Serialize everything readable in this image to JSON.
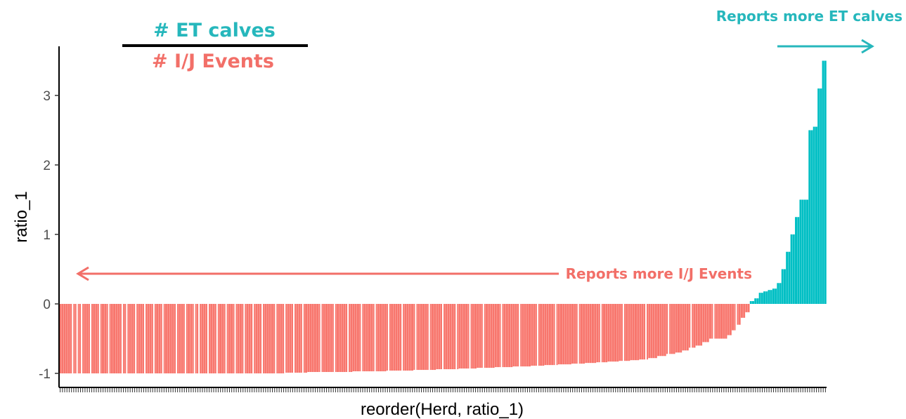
{
  "chart_data": {
    "type": "bar",
    "xlabel": "reorder(Herd, ratio_1)",
    "ylabel": "ratio_1",
    "ylim": [
      -1.15,
      3.6
    ],
    "yticks": [
      -1,
      0,
      1,
      2,
      3
    ],
    "grid": false,
    "legend": "none",
    "colors": {
      "negative": "#f8766d",
      "positive": "#00bfc4",
      "axis": "#000000"
    },
    "annotations": {
      "numerator": "# ET calves",
      "denominator": "# I/J Events",
      "right_label": "Reports more ET calves",
      "left_label": "Reports more I/J Events"
    },
    "series": [
      {
        "segments": [
          {
            "count": 100,
            "value": -1.0
          },
          {
            "count": 10,
            "value": -0.99
          },
          {
            "count": 20,
            "value": -0.98
          },
          {
            "count": 15,
            "value": -0.97
          },
          {
            "count": 12,
            "value": -0.96
          },
          {
            "count": 10,
            "value": -0.95
          },
          {
            "count": 10,
            "value": -0.94
          },
          {
            "count": 8,
            "value": -0.93
          },
          {
            "count": 8,
            "value": -0.92
          },
          {
            "count": 8,
            "value": -0.91
          },
          {
            "count": 8,
            "value": -0.9
          },
          {
            "count": 6,
            "value": -0.89
          },
          {
            "count": 6,
            "value": -0.88
          },
          {
            "count": 6,
            "value": -0.87
          },
          {
            "count": 6,
            "value": -0.86
          },
          {
            "count": 5,
            "value": -0.85
          },
          {
            "count": 5,
            "value": -0.84
          },
          {
            "count": 5,
            "value": -0.83
          },
          {
            "count": 5,
            "value": -0.82
          },
          {
            "count": 4,
            "value": -0.81
          },
          {
            "count": 4,
            "value": -0.8
          },
          {
            "count": 4,
            "value": -0.78
          },
          {
            "count": 4,
            "value": -0.75
          },
          {
            "count": 4,
            "value": -0.72
          },
          {
            "count": 3,
            "value": -0.7
          },
          {
            "count": 3,
            "value": -0.67
          },
          {
            "count": 3,
            "value": -0.63
          },
          {
            "count": 3,
            "value": -0.6
          },
          {
            "count": 3,
            "value": -0.55
          },
          {
            "count": 8,
            "value": -0.5
          },
          {
            "count": 2,
            "value": -0.45
          },
          {
            "count": 2,
            "value": -0.38
          },
          {
            "count": 2,
            "value": -0.3
          },
          {
            "count": 2,
            "value": -0.2
          },
          {
            "count": 2,
            "value": -0.12
          },
          {
            "count": 2,
            "value": 0.04
          },
          {
            "count": 2,
            "value": 0.08
          },
          {
            "count": 2,
            "value": 0.16
          },
          {
            "count": 2,
            "value": 0.18
          },
          {
            "count": 2,
            "value": 0.2
          },
          {
            "count": 2,
            "value": 0.22
          },
          {
            "count": 2,
            "value": 0.3
          },
          {
            "count": 2,
            "value": 0.5
          },
          {
            "count": 2,
            "value": 0.75
          },
          {
            "count": 2,
            "value": 1.0
          },
          {
            "count": 2,
            "value": 1.25
          },
          {
            "count": 2,
            "value": 1.5
          },
          {
            "count": 2,
            "value": 1.5
          },
          {
            "count": 2,
            "value": 2.5
          },
          {
            "count": 2,
            "value": 2.55
          },
          {
            "count": 2,
            "value": 3.1
          },
          {
            "count": 2,
            "value": 3.5
          }
        ]
      }
    ]
  }
}
